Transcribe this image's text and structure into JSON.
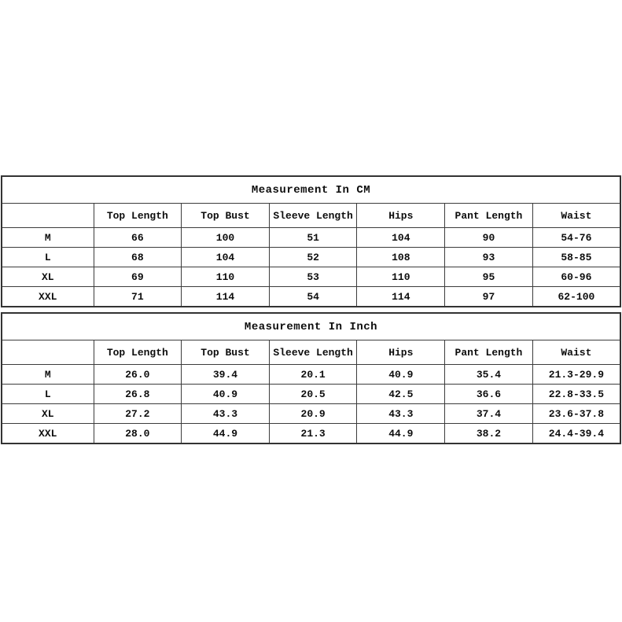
{
  "colors": {
    "background": "#ffffff",
    "border": "#3c3c3c",
    "text": "#0d0d0d"
  },
  "tables": [
    {
      "title": "Measurement In CM",
      "columns": [
        "",
        "Top Length",
        "Top Bust",
        "Sleeve Length",
        "Hips",
        "Pant Length",
        "Waist"
      ],
      "rows": [
        {
          "size": "M",
          "values": [
            "66",
            "100",
            "51",
            "104",
            "90",
            "54-76"
          ]
        },
        {
          "size": "L",
          "values": [
            "68",
            "104",
            "52",
            "108",
            "93",
            "58-85"
          ]
        },
        {
          "size": "XL",
          "values": [
            "69",
            "110",
            "53",
            "110",
            "95",
            "60-96"
          ]
        },
        {
          "size": "XXL",
          "values": [
            "71",
            "114",
            "54",
            "114",
            "97",
            "62-100"
          ]
        }
      ]
    },
    {
      "title": "Measurement In Inch",
      "columns": [
        "",
        "Top Length",
        "Top Bust",
        "Sleeve Length",
        "Hips",
        "Pant Length",
        "Waist"
      ],
      "rows": [
        {
          "size": "M",
          "values": [
            "26.0",
            "39.4",
            "20.1",
            "40.9",
            "35.4",
            "21.3-29.9"
          ]
        },
        {
          "size": "L",
          "values": [
            "26.8",
            "40.9",
            "20.5",
            "42.5",
            "36.6",
            "22.8-33.5"
          ]
        },
        {
          "size": "XL",
          "values": [
            "27.2",
            "43.3",
            "20.9",
            "43.3",
            "37.4",
            "23.6-37.8"
          ]
        },
        {
          "size": "XXL",
          "values": [
            "28.0",
            "44.9",
            "21.3",
            "44.9",
            "38.2",
            "24.4-39.4"
          ]
        }
      ]
    }
  ]
}
